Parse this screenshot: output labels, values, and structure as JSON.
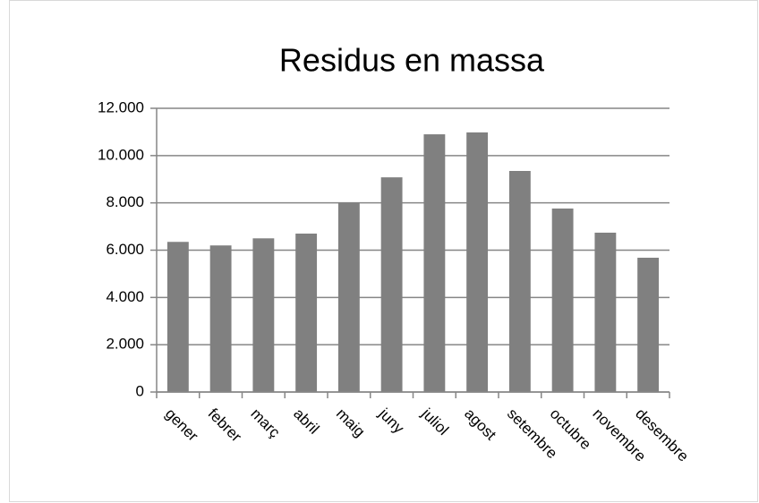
{
  "chart_data": {
    "type": "bar",
    "title": "Residus en massa",
    "categories": [
      "gener",
      "febrer",
      "març",
      "abril",
      "maig",
      "juny",
      "juliol",
      "agost",
      "setembre",
      "octubre",
      "novembre",
      "desembre"
    ],
    "values": [
      6350,
      6200,
      6500,
      6700,
      8020,
      9080,
      10900,
      10980,
      9350,
      7760,
      6740,
      5680
    ],
    "color": "#808080",
    "ylim": [
      0,
      12000
    ],
    "yticks": [
      0,
      {
        "value": 2000,
        "label": "2.000"
      },
      {
        "value": 4000,
        "label": "4.000"
      },
      {
        "value": 6000,
        "label": "6.000"
      },
      {
        "value": 8000,
        "label": "8.000"
      },
      {
        "value": 10000,
        "label": "10.000"
      },
      {
        "value": 12000,
        "label": "12.000"
      }
    ],
    "grid": true
  }
}
